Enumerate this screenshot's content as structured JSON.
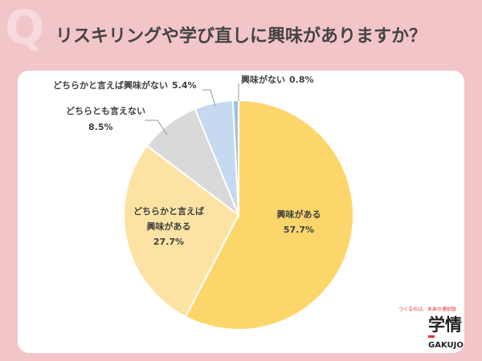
{
  "chart_data": {
    "type": "pie",
    "title": "リスキリングや学び直しに興味がありますか？",
    "watermark": "Q",
    "categories": [
      "興味がある",
      "どちらかと言えば興味がある",
      "どちらとも言えない",
      "どちらかと言えば興味がない",
      "興味がない"
    ],
    "values": [
      57.7,
      27.7,
      8.5,
      5.4,
      0.8
    ],
    "value_labels": [
      "57.7%",
      "27.7%",
      "8.5%",
      "5.4%",
      "0.8%"
    ],
    "colors": [
      "#fdd66b",
      "#fde3a3",
      "#d9d9d9",
      "#c5daf0",
      "#9dc3e6"
    ]
  },
  "branding": {
    "tagline": "つくるのは、未来の選択肢",
    "name": "学情",
    "name_en": "GAKUJO"
  }
}
